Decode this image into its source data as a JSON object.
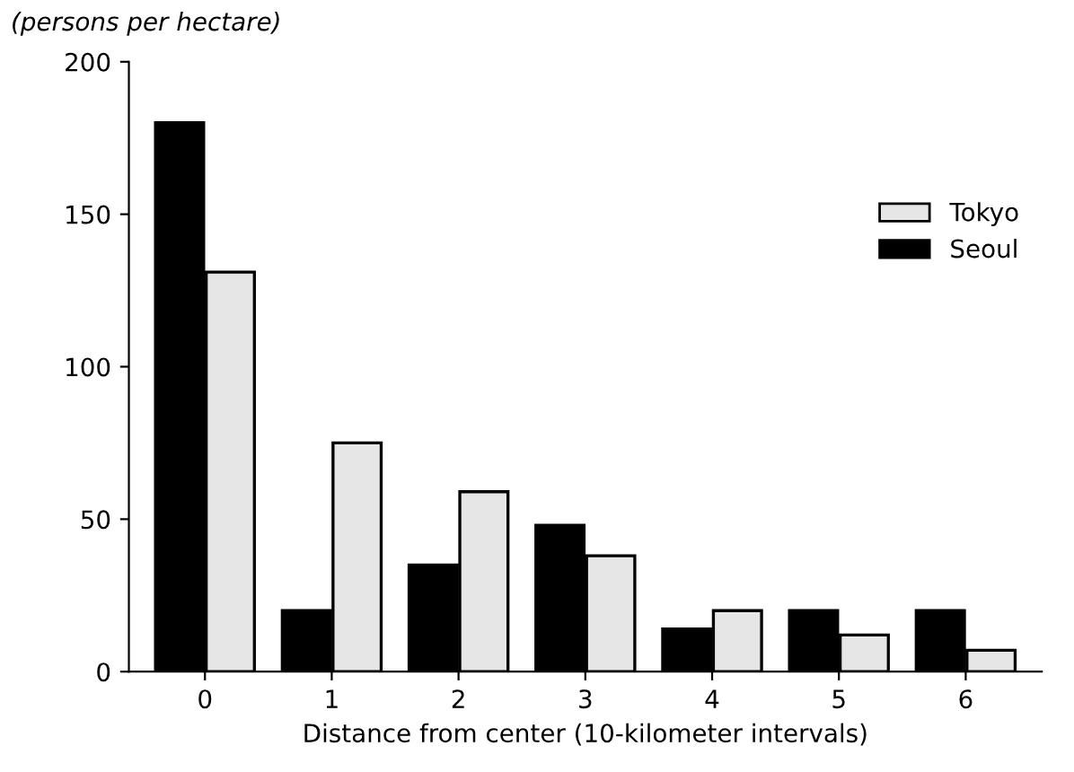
{
  "chart_data": {
    "type": "bar",
    "ylabel": "(persons per hectare)",
    "xlabel": "Distance from center (10-kilometer intervals)",
    "categories": [
      "0",
      "1",
      "2",
      "3",
      "4",
      "5",
      "6"
    ],
    "series": [
      {
        "name": "Seoul",
        "color": "#000000",
        "values": [
          180,
          20,
          35,
          48,
          14,
          20,
          20
        ]
      },
      {
        "name": "Tokyo",
        "color": "#e6e6e6",
        "values": [
          131,
          75,
          59,
          38,
          20,
          12,
          7
        ]
      }
    ],
    "ylim": [
      0,
      200
    ],
    "yticks": [
      0,
      50,
      100,
      150,
      200
    ],
    "grid": false,
    "legend": "right"
  }
}
